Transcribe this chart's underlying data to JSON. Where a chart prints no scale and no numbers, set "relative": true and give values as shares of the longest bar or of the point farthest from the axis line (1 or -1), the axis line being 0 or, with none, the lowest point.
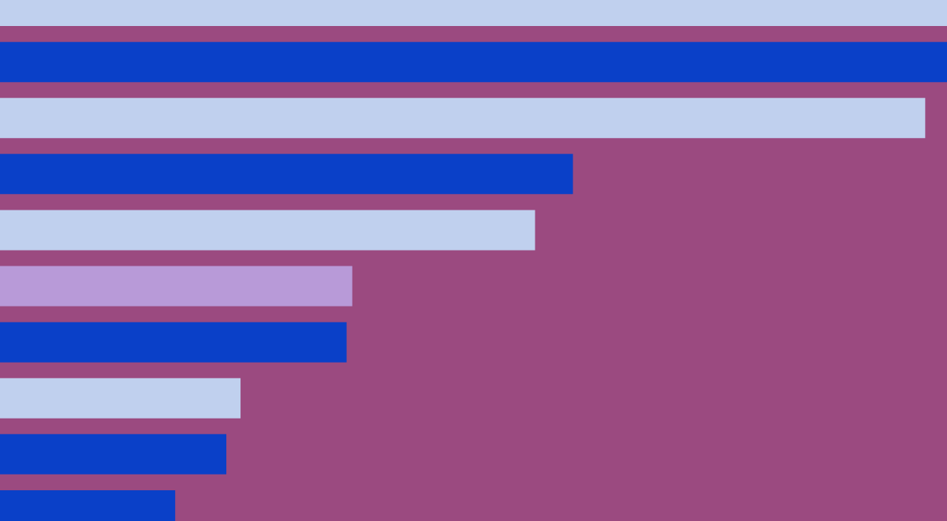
{
  "chart_data": {
    "type": "bar",
    "orientation": "horizontal",
    "relative": true,
    "categories": [
      null,
      null,
      null,
      null,
      null,
      null,
      null,
      null,
      null,
      null
    ],
    "values": [
      1,
      1,
      0.977,
      0.605,
      0.565,
      0.372,
      0.366,
      0.254,
      0.239,
      0.185
    ],
    "colors": [
      "#c0d0ee",
      "#0a40c8",
      "#c0d0ee",
      "#0a40c8",
      "#c0d0ee",
      "#b89ad8",
      "#0a40c8",
      "#c0d0ee",
      "#0a40c8",
      "#0a40c8"
    ]
  }
}
